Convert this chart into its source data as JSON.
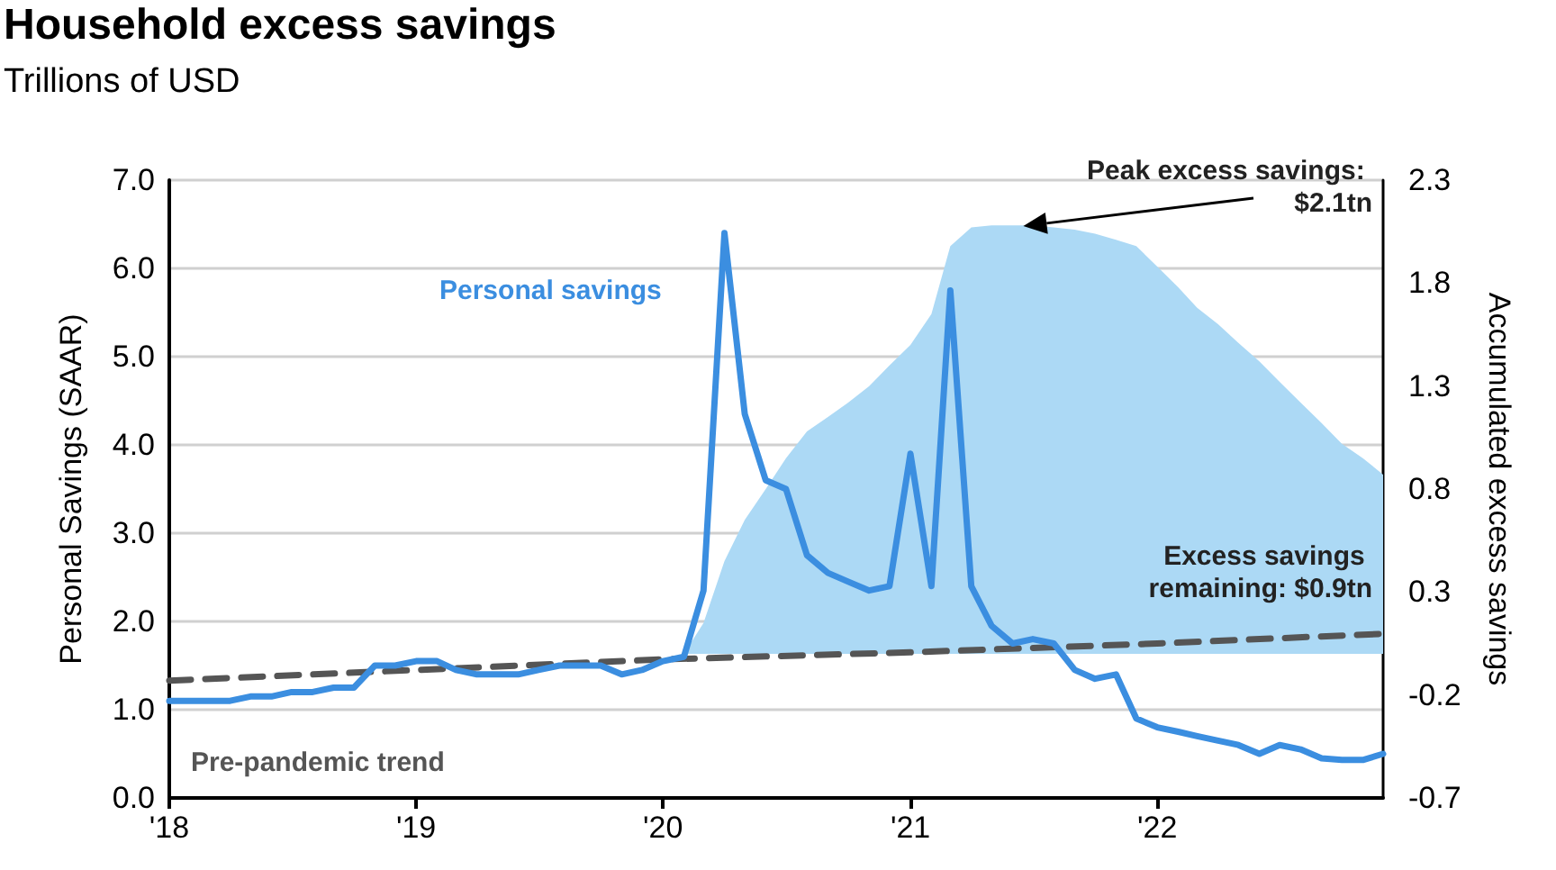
{
  "chart_data": {
    "type": "line",
    "title": "Household excess savings",
    "subtitle": "Trillions of USD",
    "ylabel": "Personal Savings (SAAR)",
    "y2label": "Accumulated excess savings",
    "annotations": [
      {
        "text": "Peak excess savings: $2.1tn",
        "x": "2021-06",
        "y": 6.5
      },
      "Excess savings remaining: $0.9tn"
    ],
    "x": [
      "2018-01",
      "2018-02",
      "2018-03",
      "2018-04",
      "2018-05",
      "2018-06",
      "2018-07",
      "2018-08",
      "2018-09",
      "2018-10",
      "2018-11",
      "2018-12",
      "2019-01",
      "2019-02",
      "2019-03",
      "2019-04",
      "2019-05",
      "2019-06",
      "2019-07",
      "2019-08",
      "2019-09",
      "2019-10",
      "2019-11",
      "2019-12",
      "2020-01",
      "2020-02",
      "2020-03",
      "2020-04",
      "2020-05",
      "2020-06",
      "2020-07",
      "2020-08",
      "2020-09",
      "2020-10",
      "2020-11",
      "2020-12",
      "2021-01",
      "2021-02",
      "2021-03",
      "2021-04",
      "2021-05",
      "2021-06",
      "2021-07",
      "2021-08",
      "2021-09",
      "2021-10",
      "2021-11",
      "2021-12",
      "2022-01",
      "2022-02",
      "2022-03",
      "2022-04",
      "2022-05",
      "2022-06",
      "2022-07",
      "2022-08",
      "2022-09",
      "2022-10",
      "2022-11",
      "2022-12"
    ],
    "series": [
      {
        "type": "area",
        "axis": "y2",
        "color": "#acd9f5",
        "x": [
          "2020-02",
          "2020-03",
          "2020-04",
          "2020-05",
          "2020-06",
          "2020-07",
          "2020-08",
          "2020-09",
          "2020-10",
          "2020-11",
          "2020-12",
          "2021-01",
          "2021-02",
          "2021-03",
          "2021-04",
          "2021-05",
          "2021-06",
          "2021-07",
          "2021-08",
          "2021-09",
          "2021-10",
          "2021-11",
          "2021-12",
          "2022-01",
          "2022-02",
          "2022-03",
          "2022-04",
          "2022-05",
          "2022-06",
          "2022-07",
          "2022-08",
          "2022-09",
          "2022-10",
          "2022-11",
          "2022-12"
        ],
        "values": [
          0,
          0.15,
          0.45,
          0.65,
          0.8,
          0.95,
          1.08,
          1.15,
          1.22,
          1.3,
          1.4,
          1.5,
          1.65,
          1.98,
          2.07,
          2.08,
          2.08,
          2.08,
          2.07,
          2.06,
          2.04,
          2.01,
          1.98,
          1.88,
          1.78,
          1.68,
          1.6,
          1.51,
          1.42,
          1.32,
          1.22,
          1.12,
          1.02,
          0.95,
          0.87
        ]
      },
      {
        "name": "Pre-pandemic trend",
        "line_style": "dashed",
        "color": "#555555",
        "x": [
          "2018-01",
          "2019-01",
          "2020-01",
          "2021-01",
          "2022-01",
          "2022-12"
        ],
        "values": [
          1.33,
          1.45,
          1.57,
          1.65,
          1.75,
          1.86
        ]
      },
      {
        "name": "Personal savings",
        "color": "#3b8ee0",
        "values": [
          1.1,
          1.1,
          1.1,
          1.1,
          1.15,
          1.15,
          1.2,
          1.2,
          1.25,
          1.25,
          1.5,
          1.5,
          1.55,
          1.55,
          1.45,
          1.4,
          1.4,
          1.4,
          1.45,
          1.5,
          1.5,
          1.5,
          1.4,
          1.45,
          1.55,
          1.6,
          2.35,
          6.4,
          4.35,
          3.6,
          3.5,
          2.75,
          2.55,
          2.45,
          2.35,
          2.4,
          3.9,
          2.4,
          5.75,
          2.4,
          1.95,
          1.75,
          1.8,
          1.75,
          1.45,
          1.35,
          1.4,
          0.9,
          0.8,
          0.75,
          0.7,
          0.65,
          0.6,
          0.5,
          0.6,
          0.55,
          0.45,
          0.43,
          0.43,
          0.5
        ]
      }
    ],
    "xlim": [
      "2018-01",
      "2022-12"
    ],
    "xticks": [
      {
        "value": "2018-01",
        "label": "'18"
      },
      {
        "value": "2019-01",
        "label": "'19"
      },
      {
        "value": "2020-01",
        "label": "'20"
      },
      {
        "value": "2021-01",
        "label": "'21"
      },
      {
        "value": "2022-01",
        "label": "'22"
      }
    ],
    "ylim": [
      0,
      7
    ],
    "yticks": [
      {
        "value": 0,
        "label": "0.0"
      },
      {
        "value": 1,
        "label": "1.0"
      },
      {
        "value": 2,
        "label": "2.0"
      },
      {
        "value": 3,
        "label": "3.0"
      },
      {
        "value": 4,
        "label": "4.0"
      },
      {
        "value": 5,
        "label": "5.0"
      },
      {
        "value": 6,
        "label": "6.0"
      },
      {
        "value": 7,
        "label": "7.0"
      }
    ],
    "y2lim": [
      -0.7,
      2.3
    ],
    "y2ticks": [
      -0.7,
      -0.2,
      0.3,
      0.8,
      1.3,
      1.8,
      2.3
    ],
    "grid": "y",
    "marker": "none"
  }
}
